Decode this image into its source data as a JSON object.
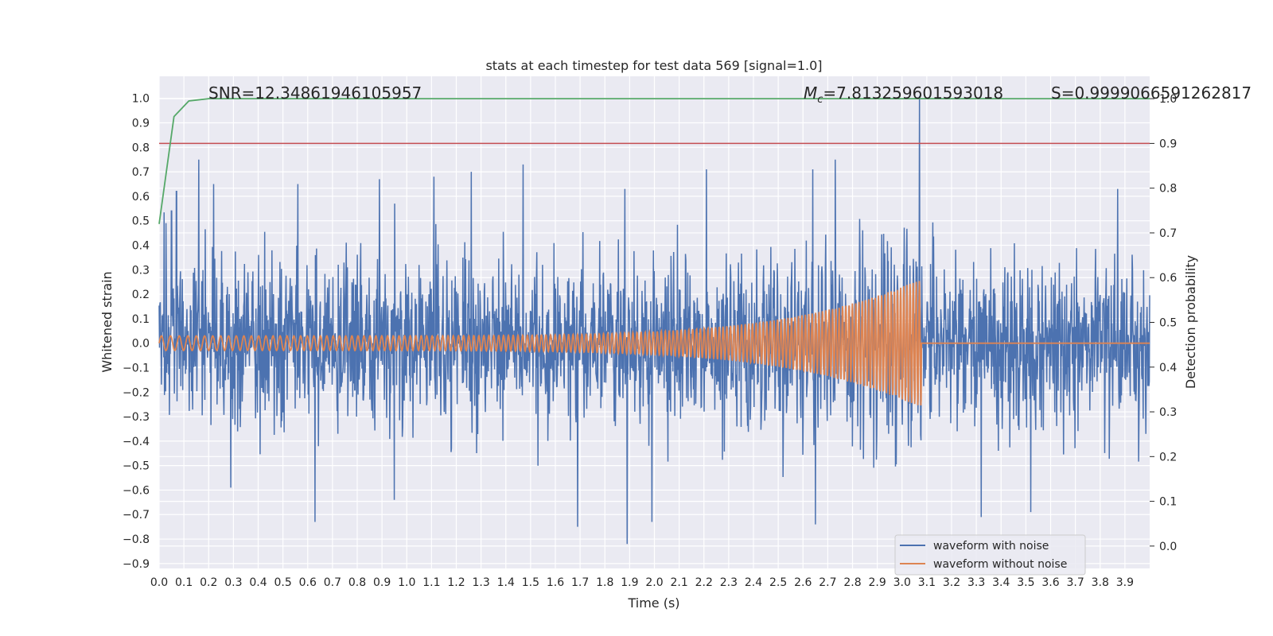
{
  "chart_data": {
    "type": "line",
    "title": "stats at each timestep for test data 569 [signal=1.0]",
    "xlabel": "Time (s)",
    "ylabel": "Whitened strain",
    "y2label": "Detection probability",
    "xlim": [
      0.0,
      4.0
    ],
    "ylim": [
      -0.92,
      1.09
    ],
    "y2lim": [
      -0.05,
      1.05
    ],
    "x_ticks": [
      0.0,
      0.1,
      0.2,
      0.3,
      0.4,
      0.5,
      0.6,
      0.7,
      0.8,
      0.9,
      1.0,
      1.1,
      1.2,
      1.3,
      1.4,
      1.5,
      1.6,
      1.7,
      1.8,
      1.9,
      2.0,
      2.1,
      2.2,
      2.3,
      2.4,
      2.5,
      2.6,
      2.7,
      2.8,
      2.9,
      3.0,
      3.1,
      3.2,
      3.3,
      3.4,
      3.5,
      3.6,
      3.7,
      3.8,
      3.9
    ],
    "y_ticks": [
      1.0,
      0.9,
      0.8,
      0.7,
      0.6,
      0.5,
      0.4,
      0.3,
      0.2,
      0.1,
      0.0,
      -0.1,
      -0.2,
      -0.3,
      -0.4,
      -0.5,
      -0.6,
      -0.7,
      -0.8,
      -0.9
    ],
    "y2_ticks": [
      1.0,
      0.9,
      0.8,
      0.7,
      0.6,
      0.5,
      0.4,
      0.3,
      0.2,
      0.1,
      0.0
    ],
    "grid": true,
    "legend_position": "bottom-right",
    "stats": {
      "snr": "SNR=12.34861946105957",
      "mc_symbol": "M",
      "mc_sub": "c",
      "mc_value": "=7.813259601593018",
      "s": "S=0.9999066591262817"
    },
    "series": [
      {
        "name": "waveform with noise",
        "color": "#4c72b0",
        "axis": "left",
        "description_of_shape": "dense noisy strain, roughly ±0.45 with spikes",
        "spikes": [
          {
            "x": 0.05,
            "y": 0.54
          },
          {
            "x": 0.07,
            "y": 0.62
          },
          {
            "x": 0.16,
            "y": 0.75
          },
          {
            "x": 0.22,
            "y": 0.65
          },
          {
            "x": 0.56,
            "y": 0.65
          },
          {
            "x": 0.89,
            "y": 0.67
          },
          {
            "x": 1.11,
            "y": 0.68
          },
          {
            "x": 1.26,
            "y": 0.7
          },
          {
            "x": 1.47,
            "y": 0.73
          },
          {
            "x": 1.88,
            "y": 0.63
          },
          {
            "x": 2.21,
            "y": 0.71
          },
          {
            "x": 2.64,
            "y": 0.71
          },
          {
            "x": 2.73,
            "y": 0.75
          },
          {
            "x": 3.07,
            "y": 1.01
          },
          {
            "x": 3.87,
            "y": 0.63
          },
          {
            "x": 0.63,
            "y": -0.73
          },
          {
            "x": 1.69,
            "y": -0.75
          },
          {
            "x": 1.89,
            "y": -0.82
          },
          {
            "x": 1.99,
            "y": -0.73
          },
          {
            "x": 2.65,
            "y": -0.74
          },
          {
            "x": 3.32,
            "y": -0.71
          },
          {
            "x": 3.52,
            "y": -0.69
          },
          {
            "x": 0.95,
            "y": -0.64
          },
          {
            "x": 0.29,
            "y": -0.59
          }
        ]
      },
      {
        "name": "waveform without noise",
        "color": "#dd8452",
        "axis": "left",
        "chirp": {
          "t_merge": 3.07,
          "amp_start": 0.03,
          "amp_peak": 0.26,
          "freq_start_hz": 27,
          "freq_end_hz": 80
        }
      },
      {
        "name": "detection probability",
        "color": "#55a868",
        "axis": "right",
        "x": [
          0.0,
          0.06,
          0.12,
          0.2,
          0.4,
          4.0
        ],
        "y": [
          0.72,
          0.96,
          0.995,
          1.0,
          1.0,
          1.0
        ]
      },
      {
        "name": "threshold",
        "color": "#c44e52",
        "axis": "right",
        "y": 0.9
      }
    ]
  }
}
